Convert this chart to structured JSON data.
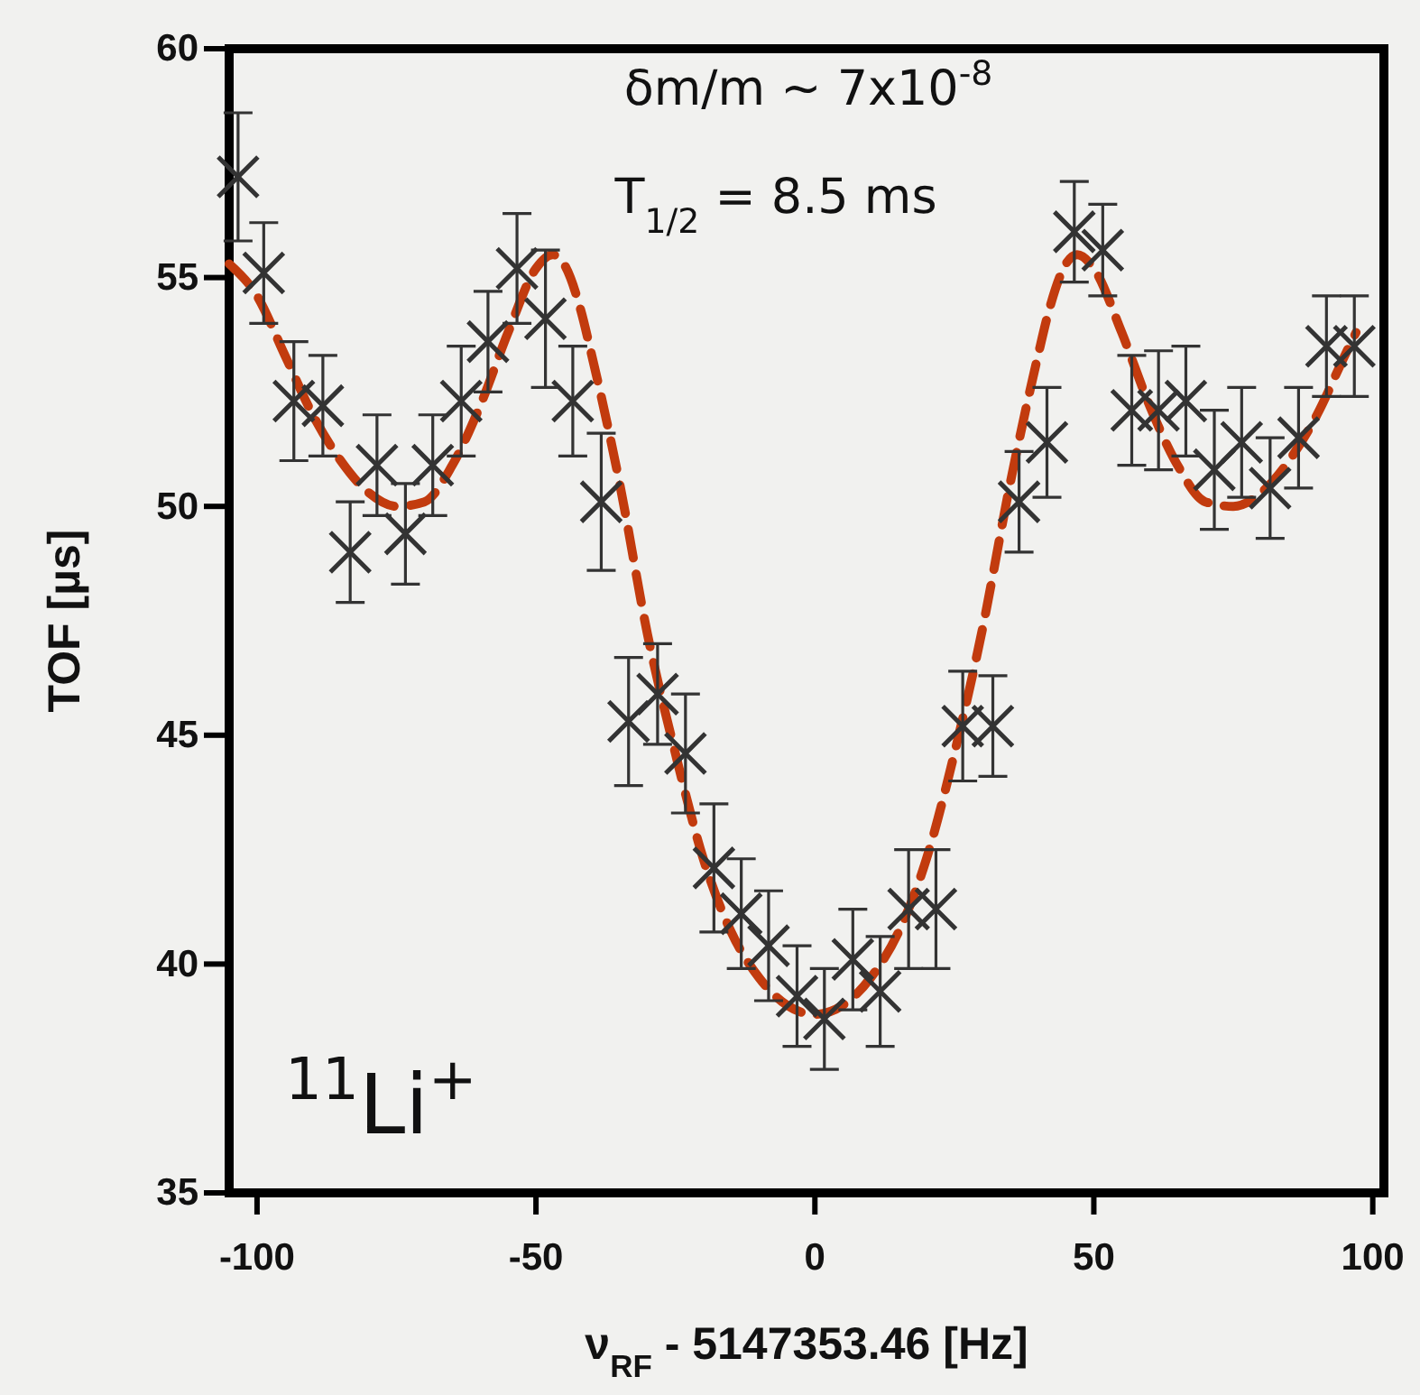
{
  "chart_data": {
    "type": "scatter",
    "xlabel": "ν$_{RF}$ - 5147353.46 [Hz]",
    "ylabel": "TOF [µs]",
    "annotations": [
      "δm/m ~ 7x10$^{-8}$",
      "T$_{1/2}$ = 8.5 ms",
      "$^{11}$Li$^{+}$"
    ],
    "xlim": [
      -105,
      102
    ],
    "xticks": [
      -100,
      -50,
      0,
      50,
      100
    ],
    "ylim": [
      35,
      60
    ],
    "yticks": [
      35,
      40,
      45,
      50,
      55,
      60
    ],
    "grid": false,
    "series": [
      {
        "type": "scatter",
        "color": "#333333",
        "marker": "cross",
        "x": [
          -103.4,
          -98.8,
          -93.4,
          -88.2,
          -83.3,
          -78.5,
          -73.4,
          -68.5,
          -63.4,
          -58.6,
          -53.4,
          -48.3,
          -43.4,
          -38.3,
          -33.4,
          -28.2,
          -23.2,
          -18.1,
          -13.2,
          -8.3,
          -3.2,
          1.7,
          6.8,
          11.7,
          16.8,
          21.7,
          26.5,
          31.9,
          36.6,
          41.6,
          46.5,
          51.6,
          56.8,
          61.6,
          66.5,
          71.6,
          76.5,
          81.6,
          86.7,
          91.7,
          96.7
        ],
        "values": [
          57.2,
          55.1,
          52.3,
          52.2,
          49.0,
          50.9,
          49.4,
          50.9,
          52.3,
          53.6,
          55.2,
          54.1,
          52.3,
          50.1,
          45.3,
          45.9,
          44.6,
          42.1,
          41.1,
          40.4,
          39.3,
          38.8,
          40.1,
          39.4,
          41.2,
          41.2,
          45.2,
          45.2,
          50.1,
          51.4,
          56.0,
          55.6,
          52.1,
          52.1,
          52.3,
          50.8,
          51.4,
          50.4,
          51.5,
          53.5,
          53.5
        ],
        "errors": [
          1.4,
          1.1,
          1.3,
          1.1,
          1.1,
          1.1,
          1.1,
          1.1,
          1.2,
          1.1,
          1.2,
          1.5,
          1.2,
          1.5,
          1.4,
          1.1,
          1.3,
          1.4,
          1.2,
          1.2,
          1.1,
          1.1,
          1.1,
          1.2,
          1.3,
          1.3,
          1.2,
          1.1,
          1.1,
          1.2,
          1.1,
          1.0,
          1.2,
          1.3,
          1.2,
          1.3,
          1.2,
          1.1,
          1.1,
          1.1,
          1.1
        ]
      },
      {
        "type": "line",
        "color": "#c23b0e",
        "line_style": "dashed",
        "marker": "none",
        "x": [
          -105,
          -100,
          -95,
          -90,
          -85,
          -80,
          -75,
          -70,
          -65,
          -60,
          -55,
          -50,
          -47,
          -45,
          -42,
          -40,
          -35,
          -30,
          -25,
          -20,
          -15,
          -10,
          -5,
          0,
          5,
          10,
          15,
          20,
          25,
          30,
          35,
          40,
          42,
          45,
          47,
          50,
          55,
          60,
          65,
          70,
          75,
          80,
          85,
          90,
          95,
          97
        ],
        "values": [
          55.3,
          54.6,
          53.3,
          52.0,
          51.0,
          50.3,
          50.0,
          50.1,
          50.9,
          52.2,
          53.8,
          55.2,
          55.5,
          55.3,
          54.3,
          53.3,
          50.5,
          47.2,
          44.6,
          42.3,
          40.7,
          39.7,
          39.1,
          38.9,
          39.1,
          39.7,
          40.7,
          42.3,
          44.6,
          47.3,
          50.5,
          53.3,
          54.3,
          55.3,
          55.5,
          55.2,
          53.8,
          52.2,
          50.9,
          50.1,
          50.0,
          50.3,
          51.0,
          52.0,
          53.3,
          53.8
        ]
      }
    ]
  }
}
